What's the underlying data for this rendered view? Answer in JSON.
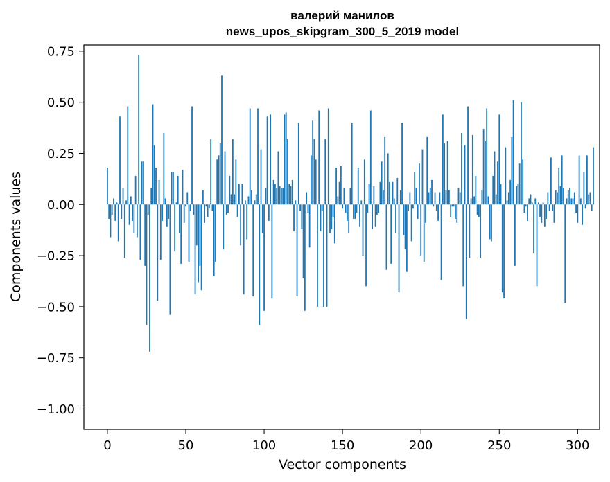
{
  "chart_data": {
    "type": "bar",
    "title": "валерий манилов",
    "subtitle": "news_upos_skipgram_300_5_2019 model",
    "xlabel": "Vector components",
    "ylabel": "Components values",
    "xlim": [
      -15,
      314
    ],
    "ylim": [
      -1.1,
      0.78
    ],
    "xticks": [
      0,
      50,
      100,
      150,
      200,
      250,
      300
    ],
    "xtick_labels": [
      "0",
      "50",
      "100",
      "150",
      "200",
      "250",
      "300"
    ],
    "yticks": [
      -1.0,
      -0.75,
      -0.5,
      -0.25,
      0.0,
      0.25,
      0.5,
      0.75
    ],
    "ytick_labels": [
      "−1.00",
      "−0.75",
      "−0.50",
      "−0.25",
      "0.00",
      "0.25",
      "0.50",
      "0.75"
    ],
    "grid": false,
    "bar_color": "#1f77b4",
    "values": [
      0.18,
      -0.07,
      -0.16,
      -0.05,
      0.03,
      -0.08,
      0.01,
      -0.18,
      0.43,
      -0.07,
      0.08,
      -0.26,
      0.02,
      0.48,
      -0.1,
      0.04,
      -0.08,
      -0.14,
      0.14,
      -0.16,
      0.73,
      -0.27,
      0.21,
      0.21,
      -0.3,
      -0.59,
      -0.05,
      -0.72,
      0.08,
      0.49,
      0.29,
      0.18,
      -0.47,
      0.12,
      -0.27,
      -0.08,
      0.35,
      0.03,
      -0.11,
      -0.07,
      -0.54,
      0.16,
      0.16,
      -0.23,
      0.01,
      0.14,
      -0.14,
      -0.29,
      0.17,
      -0.09,
      -0.01,
      0.06,
      -0.28,
      -0.03,
      0.48,
      -0.05,
      -0.44,
      -0.2,
      -0.38,
      -0.3,
      -0.42,
      0.07,
      -0.09,
      -0.01,
      -0.06,
      -0.02,
      0.32,
      -0.03,
      -0.35,
      -0.28,
      0.22,
      0.24,
      0.3,
      0.63,
      -0.22,
      0.26,
      -0.05,
      -0.04,
      0.14,
      0.05,
      0.32,
      0.05,
      0.22,
      -0.06,
      0.1,
      -0.2,
      0.1,
      -0.44,
      0.02,
      -0.17,
      0.04,
      0.47,
      0.07,
      -0.45,
      0.02,
      0.05,
      0.47,
      -0.59,
      0.27,
      -0.14,
      -0.52,
      0.08,
      0.43,
      -0.08,
      0.44,
      -0.46,
      0.12,
      0.1,
      0.08,
      0.26,
      0.09,
      0.08,
      0.08,
      0.44,
      0.45,
      0.32,
      0.1,
      0.09,
      0.12,
      -0.13,
      0.02,
      -0.45,
      0.4,
      -0.03,
      -0.12,
      -0.36,
      -0.52,
      0.06,
      -0.04,
      -0.21,
      0.24,
      0.41,
      0.32,
      0.22,
      -0.5,
      0.46,
      -0.13,
      -0.03,
      -0.5,
      0.32,
      -0.5,
      0.47,
      -0.14,
      -0.12,
      -0.06,
      -0.19,
      0.18,
      0.04,
      0.11,
      0.19,
      -0.02,
      0.08,
      -0.04,
      -0.08,
      -0.14,
      0.08,
      0.4,
      -0.07,
      -0.07,
      -0.04,
      0.18,
      -0.11,
      0.02,
      -0.25,
      0.22,
      -0.4,
      -0.04,
      0.1,
      0.46,
      -0.12,
      0.09,
      -0.11,
      -0.05,
      -0.04,
      0.11,
      0.21,
      0.07,
      0.33,
      -0.32,
      0.25,
      0.11,
      -0.29,
      0.11,
      0.03,
      -0.14,
      0.13,
      -0.43,
      0.07,
      0.4,
      -0.15,
      -0.22,
      -0.33,
      -0.03,
      0.06,
      -0.18,
      -0.02,
      0.16,
      0.08,
      -0.07,
      0.2,
      -0.25,
      0.27,
      -0.28,
      -0.09,
      0.33,
      0.06,
      0.08,
      0.12,
      -0.01,
      0.06,
      -0.03,
      -0.08,
      0.06,
      -0.37,
      0.44,
      0.3,
      0.07,
      0.31,
      0.07,
      -0.06,
      -0.01,
      -0.01,
      -0.07,
      -0.09,
      0.08,
      0.06,
      0.35,
      -0.4,
      0.29,
      -0.56,
      0.48,
      -0.26,
      0.03,
      0.34,
      0.04,
      0.14,
      -0.05,
      -0.06,
      -0.26,
      0.07,
      0.37,
      0.31,
      0.47,
      0.04,
      -0.17,
      -0.18,
      0.14,
      0.26,
      0.05,
      0.21,
      0.44,
      0.1,
      -0.43,
      -0.46,
      0.28,
      0.02,
      0.06,
      0.12,
      0.33,
      0.51,
      -0.3,
      0.09,
      0.1,
      0.2,
      0.5,
      0.22,
      -0.04,
      -0.01,
      -0.08,
      0.03,
      0.05,
      0.01,
      -0.24,
      0.03,
      -0.4,
      0.01,
      -0.06,
      -0.09,
      0.01,
      -0.11,
      -0.07,
      0.06,
      -0.03,
      0.23,
      -0.03,
      -0.09,
      0.07,
      0.06,
      0.18,
      0.09,
      0.24,
      0.08,
      -0.48,
      0.03,
      0.07,
      0.08,
      0.03,
      0.03,
      0.06,
      -0.04,
      -0.09,
      0.24,
      0.03,
      -0.1,
      0.16,
      -0.02,
      0.24,
      0.05,
      0.06,
      -0.03,
      0.28
    ]
  }
}
